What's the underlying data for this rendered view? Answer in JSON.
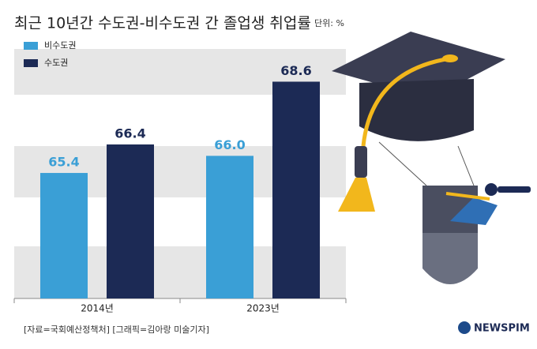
{
  "chart_data": {
    "type": "bar",
    "title": "최근 10년간 수도권-비수도권 간 졸업생 취업률",
    "unit": "단위: %",
    "categories": [
      "2014년",
      "2023년"
    ],
    "series": [
      {
        "name": "비수도권",
        "color": "#3a9fd6",
        "values": [
          65.4,
          66.0
        ],
        "value_labels": [
          "65.4",
          "66.0"
        ]
      },
      {
        "name": "수도권",
        "color": "#1c2a55",
        "values": [
          66.4,
          68.6
        ]
      }
    ],
    "ylim": [
      61,
      69
    ],
    "source": "[자료=국회예산정책처] [그래픽=김아랑 미술기자]",
    "logo": "NEWSPIM"
  }
}
